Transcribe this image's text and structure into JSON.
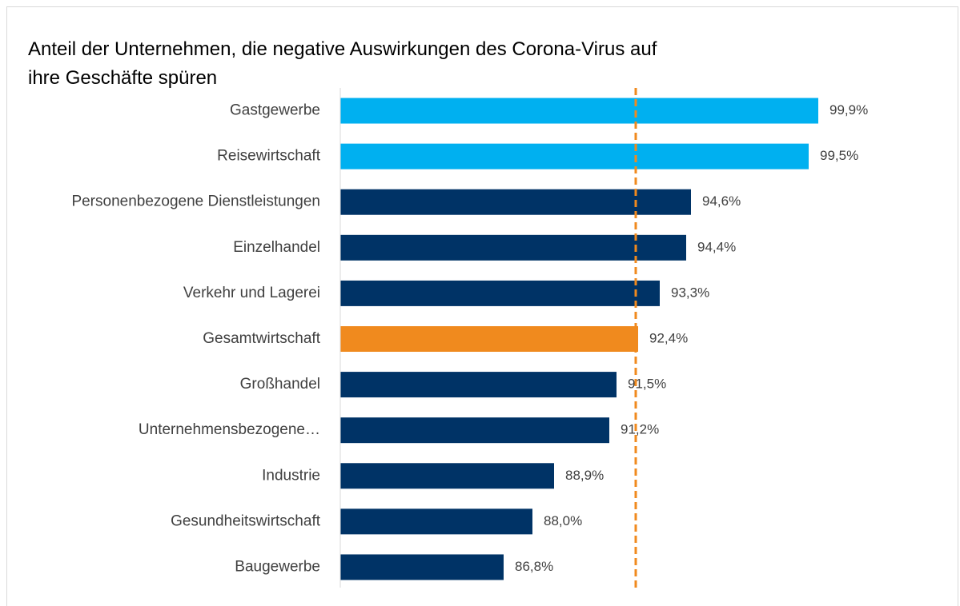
{
  "chart_data": {
    "type": "barh",
    "title": "Anteil der Unternehmen, die negative Auswirkungen des Corona-Virus auf ihre Geschäfte spüren",
    "categories": [
      "Gastgewerbe",
      "Reisewirtschaft",
      "Personenbezogene Dienstleistungen",
      "Einzelhandel",
      "Verkehr und Lagerei",
      "Gesamtwirtschaft",
      "Großhandel",
      "Unternehmensbezogene…",
      "Industrie",
      "Gesundheitswirtschaft",
      "Baugewerbe"
    ],
    "values": [
      99.9,
      99.5,
      94.6,
      94.4,
      93.3,
      92.4,
      91.5,
      91.2,
      88.9,
      88.0,
      86.8
    ],
    "value_labels": [
      "99,9%",
      "99,5%",
      "94,6%",
      "94,4%",
      "93,3%",
      "92,4%",
      "91,5%",
      "91,2%",
      "88,9%",
      "88,0%",
      "86,8%"
    ],
    "colors": [
      "#00b0f0",
      "#00b0f0",
      "#003366",
      "#003366",
      "#003366",
      "#f08a1e",
      "#003366",
      "#003366",
      "#003366",
      "#003366",
      "#003366"
    ],
    "reference_color": "#f08a1e",
    "xlim": [
      80,
      100
    ]
  }
}
